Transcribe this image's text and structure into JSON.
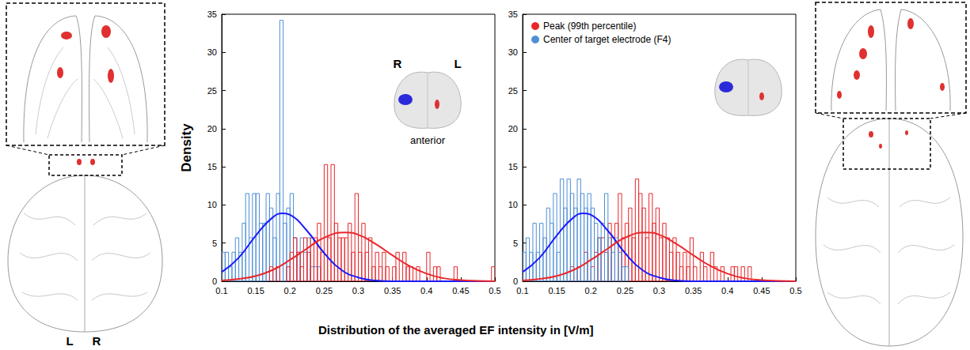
{
  "xlabel": "Distribution of the averaged EF intensity in [V/m]",
  "ylabel": "Density",
  "image_labels": [
    "L",
    "R"
  ],
  "chart_data": [
    {
      "type": "histogram",
      "annotations": [
        "R",
        "L",
        "anterior"
      ],
      "xlim": [
        0.1,
        0.5
      ],
      "xticks": [
        0.1,
        0.15,
        0.2,
        0.25,
        0.3,
        0.35,
        0.4,
        0.45,
        0.5
      ],
      "ylim": [
        0,
        35
      ],
      "yticks": [
        0,
        5,
        10,
        15,
        20,
        25,
        30,
        35
      ],
      "grid": false,
      "bins": [
        0.1,
        0.105,
        0.11,
        0.115,
        0.12,
        0.125,
        0.13,
        0.135,
        0.14,
        0.145,
        0.15,
        0.155,
        0.16,
        0.165,
        0.17,
        0.175,
        0.18,
        0.185,
        0.19,
        0.195,
        0.2,
        0.205,
        0.21,
        0.215,
        0.22,
        0.225,
        0.23,
        0.235,
        0.24,
        0.245,
        0.25,
        0.255,
        0.26,
        0.265,
        0.27,
        0.275,
        0.28,
        0.285,
        0.29,
        0.295,
        0.3,
        0.305,
        0.31,
        0.315,
        0.32,
        0.325,
        0.33,
        0.335,
        0.34,
        0.345,
        0.35,
        0.355,
        0.36,
        0.365,
        0.37,
        0.375,
        0.38,
        0.385,
        0.39,
        0.395,
        0.4,
        0.405,
        0.41,
        0.415,
        0.42,
        0.425,
        0.43,
        0.435,
        0.44,
        0.445,
        0.45,
        0.455,
        0.46,
        0.465,
        0.47,
        0.475,
        0.48,
        0.485,
        0.49,
        0.495,
        0.5
      ],
      "series": [
        {
          "name": "Center of target electrode (F4)",
          "type": "bar",
          "color": "#4f8fd6",
          "values": [
            3.8,
            3.8,
            1.9,
            3.8,
            5.7,
            3.8,
            7.6,
            11.5,
            5.7,
            11.5,
            11.5,
            7.6,
            7.6,
            11.5,
            9.6,
            5.7,
            11.5,
            34.2,
            7.6,
            9.6,
            11.5,
            5.7,
            3.8,
            5.7,
            3.8,
            5.7,
            1.9,
            1.9,
            1.9,
            0,
            0,
            0,
            0,
            0,
            0,
            0,
            0,
            0,
            0,
            0,
            0,
            0,
            0,
            0,
            0,
            0,
            0,
            0,
            0,
            0,
            0,
            0,
            0,
            0,
            0,
            0,
            0,
            0,
            0,
            0,
            0,
            0,
            0,
            0,
            0,
            0,
            0,
            0,
            0,
            0,
            0,
            0,
            0,
            0,
            0,
            0,
            0,
            0,
            0,
            0
          ]
        },
        {
          "name": "Peak (99th percentile)",
          "type": "bar",
          "color": "#e8272b",
          "values": [
            0,
            0,
            0,
            0,
            0,
            0,
            0,
            0,
            0,
            0,
            0,
            0,
            0,
            0,
            1.9,
            0,
            1.9,
            0,
            0,
            1.9,
            3.8,
            5.7,
            3.8,
            1.9,
            5.7,
            3.8,
            5.7,
            5.7,
            7.6,
            3.8,
            15.3,
            5.7,
            15.3,
            7.6,
            5.7,
            5.7,
            5.7,
            7.6,
            3.8,
            11.5,
            3.8,
            7.6,
            3.8,
            5.7,
            1.9,
            3.8,
            1.9,
            3.8,
            1.9,
            0,
            1.9,
            3.8,
            0,
            3.8,
            1.9,
            1.9,
            0,
            1.9,
            0,
            0,
            3.8,
            0,
            1.9,
            1.9,
            0,
            0,
            0,
            0,
            1.9,
            0,
            0,
            0,
            0,
            0,
            0,
            0,
            0,
            0,
            0,
            1.9
          ]
        },
        {
          "type": "line",
          "color": "#1a1aff",
          "line_style": "solid",
          "x": [
            0.1,
            0.125,
            0.15,
            0.175,
            0.19,
            0.2,
            0.225,
            0.25,
            0.275,
            0.3,
            0.325,
            0.35,
            0.375,
            0.4,
            0.425,
            0.45,
            0.475,
            0.5
          ],
          "values": [
            1.2,
            3.1,
            6.0,
            8.4,
            8.9,
            8.7,
            6.6,
            3.7,
            1.5,
            0.5,
            0.1,
            0,
            0,
            0,
            0,
            0,
            0,
            0
          ]
        },
        {
          "type": "line",
          "color": "#e8272b",
          "line_style": "solid",
          "x": [
            0.1,
            0.125,
            0.15,
            0.175,
            0.2,
            0.225,
            0.25,
            0.28,
            0.3,
            0.325,
            0.35,
            0.375,
            0.4,
            0.425,
            0.45,
            0.475,
            0.5
          ],
          "values": [
            0.1,
            0.3,
            0.7,
            1.5,
            2.8,
            4.3,
            5.7,
            6.4,
            6.1,
            4.9,
            3.4,
            2.0,
            1.0,
            0.4,
            0.15,
            0.05,
            0
          ]
        }
      ]
    },
    {
      "type": "histogram",
      "legend": "upper left",
      "xlim": [
        0.1,
        0.5
      ],
      "xticks": [
        0.1,
        0.15,
        0.2,
        0.25,
        0.3,
        0.35,
        0.4,
        0.45,
        0.5
      ],
      "ylim": [
        0,
        35
      ],
      "yticks": [
        0,
        5,
        10,
        15,
        20,
        25,
        30,
        35
      ],
      "grid": false,
      "bins": [
        0.1,
        0.105,
        0.11,
        0.115,
        0.12,
        0.125,
        0.13,
        0.135,
        0.14,
        0.145,
        0.15,
        0.155,
        0.16,
        0.165,
        0.17,
        0.175,
        0.18,
        0.185,
        0.19,
        0.195,
        0.2,
        0.205,
        0.21,
        0.215,
        0.22,
        0.225,
        0.23,
        0.235,
        0.24,
        0.245,
        0.25,
        0.255,
        0.26,
        0.265,
        0.27,
        0.275,
        0.28,
        0.285,
        0.29,
        0.295,
        0.3,
        0.305,
        0.31,
        0.315,
        0.32,
        0.325,
        0.33,
        0.335,
        0.34,
        0.345,
        0.35,
        0.355,
        0.36,
        0.365,
        0.37,
        0.375,
        0.38,
        0.385,
        0.39,
        0.395,
        0.4,
        0.405,
        0.41,
        0.415,
        0.42,
        0.425,
        0.43,
        0.435,
        0.44,
        0.445,
        0.45,
        0.455,
        0.46,
        0.465,
        0.47,
        0.475,
        0.48,
        0.485,
        0.49,
        0.495,
        0.5
      ],
      "series": [
        {
          "name": "Peak (99th percentile)",
          "type": "bar",
          "color": "#e8272b",
          "values": [
            0,
            0,
            0,
            0,
            0,
            0,
            0,
            0,
            0,
            0,
            0,
            0,
            0,
            0,
            1.9,
            0,
            1.9,
            0,
            3.8,
            0,
            1.9,
            3.8,
            5.7,
            5.7,
            3.8,
            7.6,
            5.7,
            7.6,
            11.5,
            5.7,
            7.6,
            9.6,
            5.7,
            13.4,
            11.5,
            9.6,
            5.7,
            11.5,
            7.6,
            9.6,
            5.7,
            7.6,
            5.7,
            3.8,
            5.7,
            3.8,
            1.9,
            3.8,
            1.9,
            5.7,
            1.9,
            0,
            3.8,
            1.9,
            0,
            3.8,
            1.9,
            0,
            1.9,
            0,
            0,
            1.9,
            1.9,
            0,
            1.9,
            0,
            1.9,
            0,
            0,
            0,
            0,
            0,
            0,
            0,
            0,
            0,
            0,
            0,
            0,
            0
          ]
        },
        {
          "name": "Center of target electrode (F4)",
          "type": "bar",
          "color": "#4f8fd6",
          "values": [
            3.8,
            5.7,
            3.8,
            7.6,
            3.8,
            7.6,
            5.7,
            9.6,
            7.6,
            11.5,
            3.8,
            13.4,
            9.6,
            13.4,
            11.5,
            9.6,
            13.4,
            11.5,
            9.6,
            11.5,
            9.6,
            7.6,
            5.7,
            7.6,
            11.5,
            5.7,
            3.8,
            5.7,
            3.8,
            1.9,
            1.9,
            0,
            0,
            0,
            0,
            0,
            0,
            0,
            0,
            0,
            0,
            0,
            0,
            0,
            0,
            0,
            0,
            0,
            0,
            0,
            0,
            0,
            0,
            0,
            0,
            0,
            0,
            0,
            0,
            0,
            0,
            0,
            0,
            0,
            0,
            0,
            0,
            0,
            0,
            0,
            0,
            0,
            0,
            0,
            0,
            0,
            0,
            0,
            0,
            0
          ]
        },
        {
          "type": "line",
          "color": "#1a1aff",
          "line_style": "solid",
          "x": [
            0.1,
            0.125,
            0.15,
            0.175,
            0.19,
            0.2,
            0.225,
            0.25,
            0.275,
            0.3,
            0.325,
            0.35,
            0.375,
            0.4,
            0.425,
            0.45,
            0.475,
            0.5
          ],
          "values": [
            1.2,
            3.1,
            6.0,
            8.4,
            8.9,
            8.7,
            6.6,
            3.7,
            1.5,
            0.5,
            0.1,
            0,
            0,
            0,
            0,
            0,
            0,
            0
          ]
        },
        {
          "type": "line",
          "color": "#e8272b",
          "line_style": "solid",
          "x": [
            0.1,
            0.125,
            0.15,
            0.175,
            0.2,
            0.225,
            0.25,
            0.28,
            0.3,
            0.325,
            0.35,
            0.375,
            0.4,
            0.425,
            0.45,
            0.475,
            0.5
          ],
          "values": [
            0.1,
            0.3,
            0.7,
            1.5,
            2.8,
            4.3,
            5.7,
            6.4,
            6.1,
            4.9,
            3.4,
            2.0,
            1.0,
            0.4,
            0.15,
            0.05,
            0
          ]
        }
      ]
    }
  ]
}
